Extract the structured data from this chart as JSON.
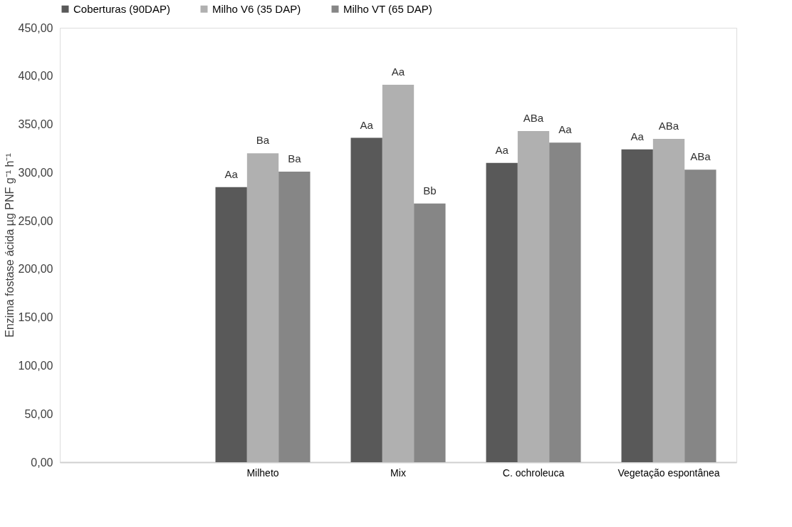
{
  "chart_data": {
    "type": "bar",
    "ylabel": "Enzima fostase ácida µg PNF g⁻¹ h⁻¹",
    "categories": [
      null,
      "Milheto",
      "Mix",
      "C. ochroleuca",
      "Vegetação espontânea"
    ],
    "series": [
      {
        "name": "Coberturas (90DAP)",
        "color": "#595959",
        "values": [
          null,
          285,
          336,
          310,
          324
        ],
        "value_labels": [
          null,
          "Aa",
          "Aa",
          "Aa",
          "Aa"
        ]
      },
      {
        "name": "Milho V6 (35 DAP)",
        "color": "#b0b0b0",
        "values": [
          null,
          320,
          391,
          343,
          335
        ],
        "value_labels": [
          null,
          "Ba",
          "Aa",
          "ABa",
          "ABa"
        ]
      },
      {
        "name": "Milho VT (65 DAP)",
        "color": "#868686",
        "values": [
          null,
          301,
          268,
          331,
          303
        ],
        "value_labels": [
          null,
          "Ba",
          "Bb",
          "Aa",
          "ABa"
        ]
      }
    ],
    "ylim": [
      0,
      450
    ],
    "yticks": [
      {
        "value": 0,
        "label": "0,00"
      },
      {
        "value": 50,
        "label": "50,00"
      },
      {
        "value": 100,
        "label": "100,00"
      },
      {
        "value": 150,
        "label": "150,00"
      },
      {
        "value": 200,
        "label": "200,00"
      },
      {
        "value": 250,
        "label": "250,00"
      },
      {
        "value": 300,
        "label": "300,00"
      },
      {
        "value": 350,
        "label": "350,00"
      },
      {
        "value": 400,
        "label": "400,00"
      },
      {
        "value": 450,
        "label": "450,00"
      }
    ],
    "grid": false,
    "legend": "top"
  }
}
